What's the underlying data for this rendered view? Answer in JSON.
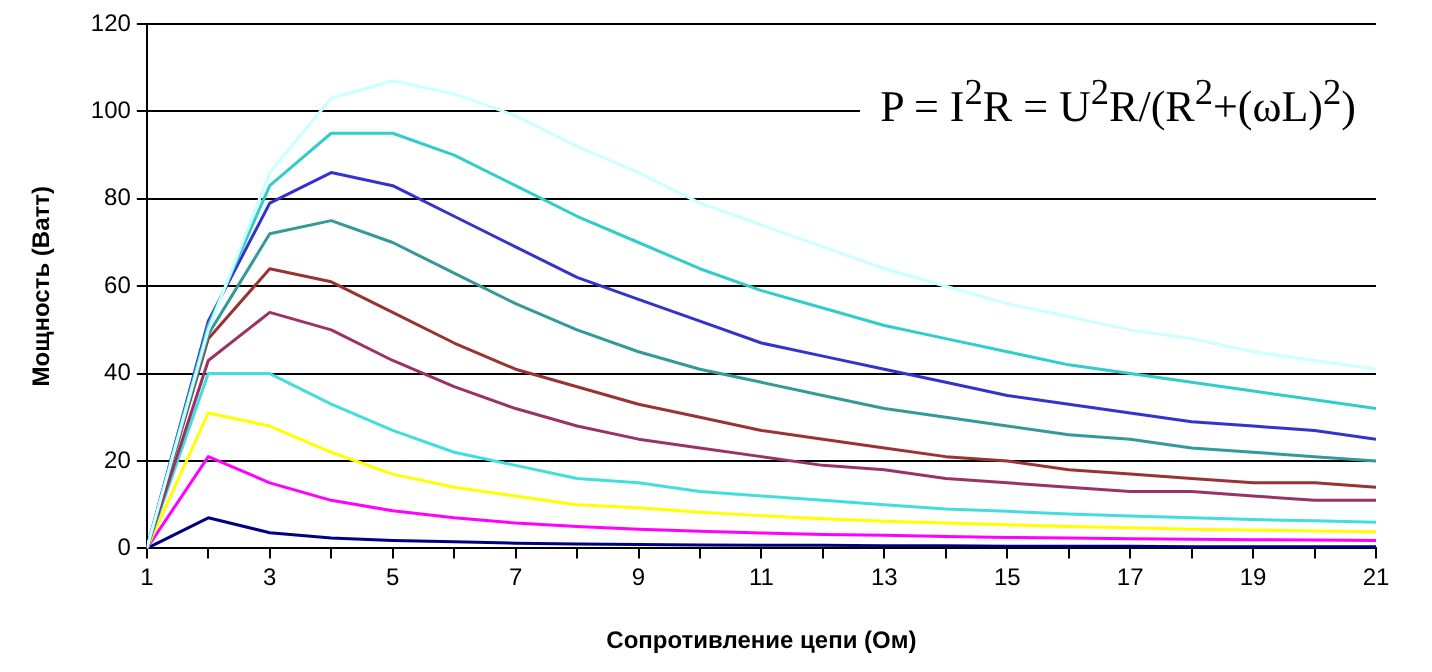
{
  "chart_data": {
    "type": "line",
    "xlabel": "Сопротивление цепи (Ом)",
    "ylabel": "Мощность (Ватт)",
    "annotations": [
      "P = I$^{2}$R = U$^{2}$R/(R$^{2}$+(ωL)$^{2}$)"
    ],
    "x": [
      1,
      2,
      3,
      4,
      5,
      6,
      7,
      8,
      9,
      10,
      11,
      12,
      13,
      14,
      15,
      16,
      17,
      18,
      19,
      20,
      21
    ],
    "xlim": [
      1,
      21
    ],
    "xticks": [
      1,
      {
        "value": 2,
        "label": null
      },
      3,
      {
        "value": 4,
        "label": null
      },
      5,
      {
        "value": 6,
        "label": null
      },
      7,
      {
        "value": 8,
        "label": null
      },
      9,
      {
        "value": 10,
        "label": null
      },
      11,
      {
        "value": 12,
        "label": null
      },
      13,
      {
        "value": 14,
        "label": null
      },
      15,
      {
        "value": 16,
        "label": null
      },
      17,
      {
        "value": 18,
        "label": null
      },
      19,
      {
        "value": 20,
        "label": null
      },
      21
    ],
    "ylim": [
      0,
      120
    ],
    "yticks": [
      0,
      20,
      40,
      60,
      80,
      100,
      120
    ],
    "grid": "y",
    "legend": false,
    "marker": "none",
    "line_style": "solid",
    "series": [
      {
        "color": "#ccffff",
        "values": [
          0,
          50,
          86,
          103,
          107,
          104,
          99,
          92,
          86,
          79,
          74,
          69,
          64,
          60,
          56,
          53,
          50,
          48,
          45,
          43,
          41
        ]
      },
      {
        "color": "#33cccc",
        "values": [
          0,
          51,
          83,
          95,
          95,
          90,
          83,
          76,
          70,
          64,
          59,
          55,
          51,
          48,
          45,
          42,
          40,
          38,
          36,
          34,
          32
        ]
      },
      {
        "color": "#3333cc",
        "values": [
          0,
          52,
          79,
          86,
          83,
          76,
          69,
          62,
          57,
          52,
          47,
          44,
          41,
          38,
          35,
          33,
          31,
          29,
          28,
          27,
          25
        ]
      },
      {
        "color": "#339999",
        "values": [
          0,
          49,
          72,
          75,
          70,
          63,
          56,
          50,
          45,
          41,
          38,
          35,
          32,
          30,
          28,
          26,
          25,
          23,
          22,
          21,
          20
        ]
      },
      {
        "color": "#993333",
        "values": [
          0,
          48,
          64,
          61,
          54,
          47,
          41,
          37,
          33,
          30,
          27,
          25,
          23,
          21,
          20,
          18,
          17,
          16,
          15,
          15,
          14
        ]
      },
      {
        "color": "#993366",
        "values": [
          0,
          43,
          54,
          50,
          43,
          37,
          32,
          28,
          25,
          23,
          21,
          19,
          18,
          16,
          15,
          14,
          13,
          13,
          12,
          11,
          11
        ]
      },
      {
        "color": "#44dddd",
        "values": [
          0,
          40,
          40,
          33,
          27,
          22,
          19,
          16,
          15,
          13,
          12,
          11,
          10,
          9,
          8.5,
          7.9,
          7.4,
          7,
          6.6,
          6.3,
          6
        ]
      },
      {
        "color": "#ffff00",
        "values": [
          0,
          31,
          28,
          22,
          17,
          14,
          12,
          10,
          9.3,
          8.3,
          7.5,
          6.8,
          6.2,
          5.8,
          5.4,
          5,
          4.7,
          4.4,
          4.2,
          4,
          3.8
        ]
      },
      {
        "color": "#ff00ff",
        "values": [
          0,
          21,
          15,
          11,
          8.6,
          7,
          5.8,
          5,
          4.4,
          3.9,
          3.5,
          3.2,
          3,
          2.7,
          2.5,
          2.4,
          2.2,
          2.1,
          2,
          1.9,
          1.8
        ]
      },
      {
        "color": "#000080",
        "values": [
          0,
          7,
          3.6,
          2.4,
          1.8,
          1.5,
          1.2,
          1,
          0.9,
          0.8,
          0.7,
          0.7,
          0.6,
          0.6,
          0.5,
          0.5,
          0.5,
          0.4,
          0.4,
          0.4,
          0.4
        ]
      }
    ]
  }
}
